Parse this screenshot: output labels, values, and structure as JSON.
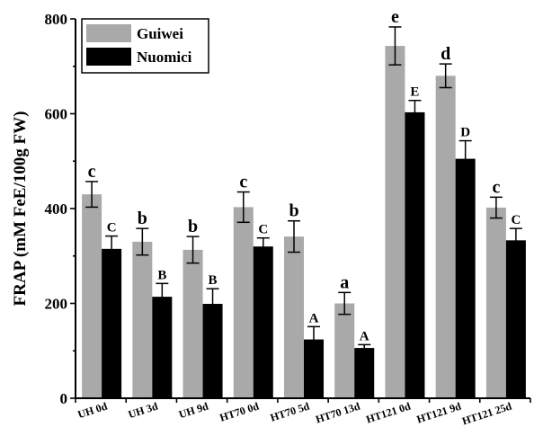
{
  "chart_data": {
    "type": "bar",
    "title": "",
    "xlabel": "",
    "ylabel": "FRAP (mM FeE/100g FW)",
    "ylim": [
      0,
      800
    ],
    "yticks": [
      0,
      200,
      400,
      600,
      800
    ],
    "legend_position": "top-left",
    "categories": [
      "UH 0d",
      "UH 3d",
      "UH 9d",
      "HT70 0d",
      "HT70 5d",
      "HT70 13d",
      "HT121 0d",
      "HT121 9d",
      "HT121 25d"
    ],
    "series": [
      {
        "name": "Guiwei",
        "color": "#a9a9a9",
        "values": [
          430,
          330,
          313,
          403,
          341,
          200,
          743,
          680,
          402
        ],
        "errors": [
          27,
          28,
          28,
          32,
          33,
          23,
          40,
          25,
          22
        ],
        "labels": [
          "c",
          "b",
          "b",
          "c",
          "b",
          "a",
          "e",
          "d",
          "c"
        ]
      },
      {
        "name": "Nuomici",
        "color": "#000000",
        "values": [
          315,
          214,
          199,
          320,
          124,
          106,
          603,
          505,
          333
        ],
        "errors": [
          27,
          28,
          32,
          18,
          27,
          7,
          25,
          38,
          25
        ],
        "labels": [
          "C",
          "B",
          "B",
          "C",
          "A",
          "A",
          "E",
          "D",
          "C"
        ]
      }
    ]
  }
}
